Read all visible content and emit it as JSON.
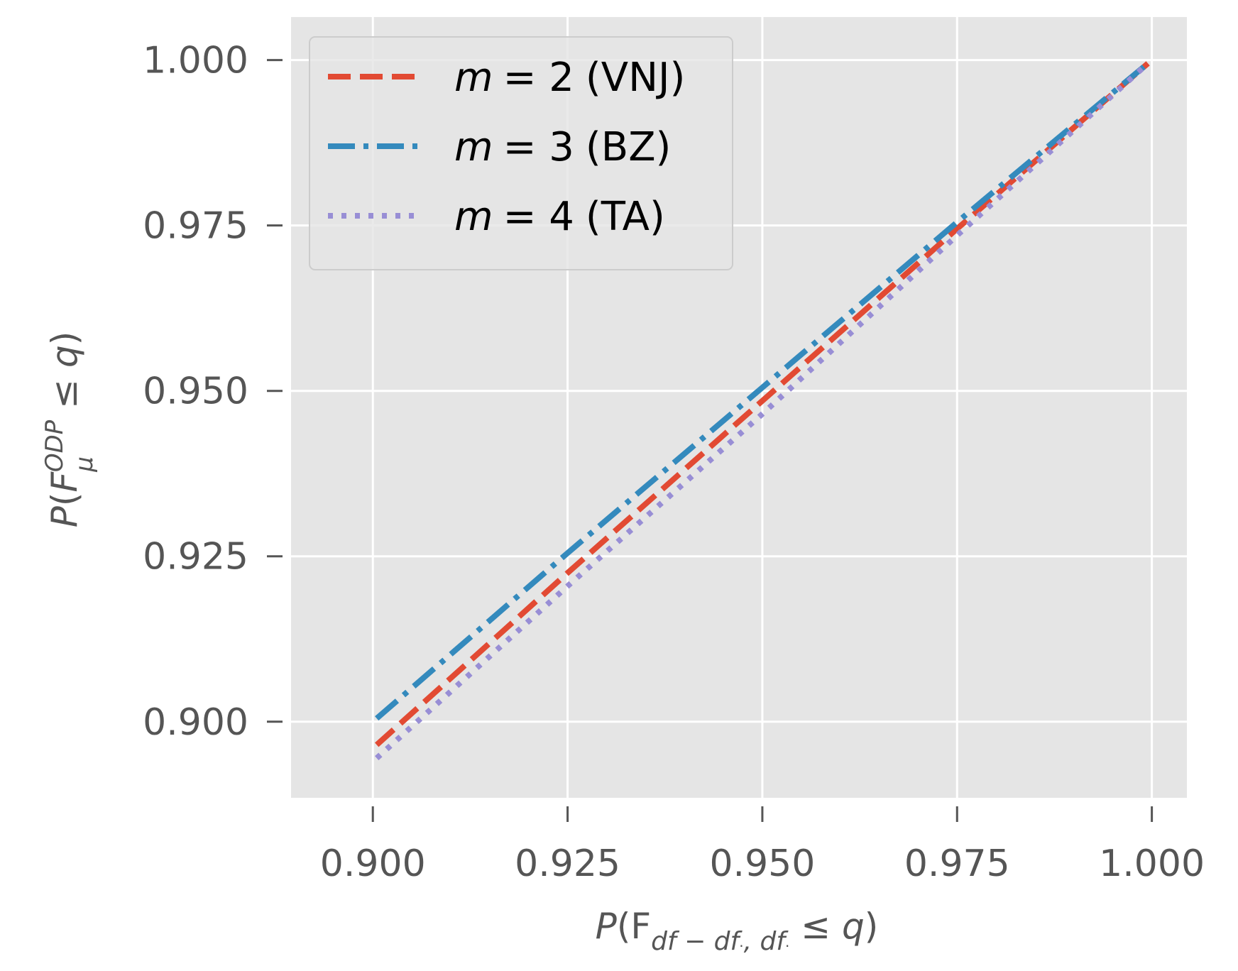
{
  "chart_data": {
    "type": "line",
    "title": "",
    "xlabel": "P(F_{df−df·, df·} ≤ q)",
    "ylabel": "P(F_μ^{ODP} ≤ q)",
    "xlim": [
      0.8895,
      1.0045
    ],
    "ylim": [
      0.8885,
      1.0065
    ],
    "xticks": [
      0.9,
      0.925,
      0.95,
      0.975,
      1.0
    ],
    "xtick_labels": [
      "0.900",
      "0.925",
      "0.950",
      "0.975",
      "1.000"
    ],
    "yticks": [
      0.9,
      0.925,
      0.95,
      0.975,
      1.0
    ],
    "ytick_labels": [
      "0.900",
      "0.925",
      "0.950",
      "0.975",
      "1.000"
    ],
    "grid": true,
    "legend_position": "upper-left",
    "series": [
      {
        "name": "m = 2 (VNJ)",
        "m_label": "m",
        "eq_label": "= 2",
        "tag_label": "(VNJ)",
        "color": "#E24A33",
        "style": "dashed",
        "x": [
          0.9005,
          0.925,
          0.95,
          0.975,
          0.9995
        ],
        "y": [
          0.8965,
          0.9225,
          0.9485,
          0.9745,
          0.9995
        ]
      },
      {
        "name": "m = 3 (BZ)",
        "m_label": "m",
        "eq_label": "= 3",
        "tag_label": "(BZ)",
        "color": "#348ABD",
        "style": "dashdot",
        "x": [
          0.9005,
          0.925,
          0.95,
          0.975,
          0.9995
        ],
        "y": [
          0.9005,
          0.9255,
          0.9505,
          0.9755,
          0.9995
        ]
      },
      {
        "name": "m = 4 (TA)",
        "m_label": "m",
        "eq_label": "= 4",
        "tag_label": "(TA)",
        "color": "#988ED5",
        "style": "dotted",
        "x": [
          0.9005,
          0.925,
          0.95,
          0.975,
          0.9995
        ],
        "y": [
          0.8945,
          0.9205,
          0.9465,
          0.9735,
          0.9995
        ]
      }
    ]
  }
}
